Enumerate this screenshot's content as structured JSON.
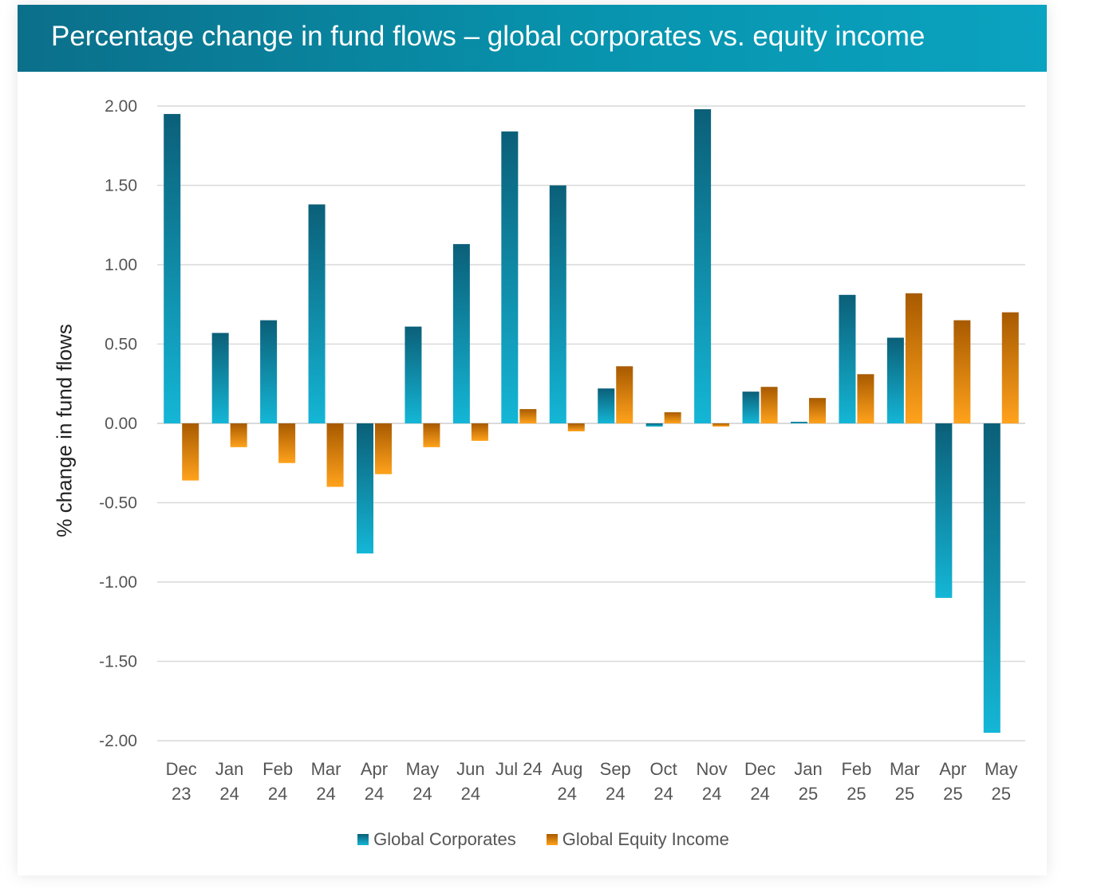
{
  "title": "Percentage change in fund flows – global corporates vs. equity income",
  "colors": {
    "header_left": "#0b6f8a",
    "header_right": "#0aa3c0",
    "series_1_top": "#0b5f78",
    "series_1_bottom": "#14b6d6",
    "series_2_top": "#a85a00",
    "series_2_bottom": "#ffa21c",
    "gridline": "#d9d9d9"
  },
  "chart_data": {
    "type": "bar",
    "ylabel": "% change in fund flows",
    "xlabel": "",
    "ylim": [
      -2.0,
      2.0
    ],
    "yticks": [
      "2.00",
      "1.50",
      "1.00",
      "0.50",
      "0.00",
      "-0.50",
      "-1.00",
      "-1.50",
      "-2.00"
    ],
    "ytick_values": [
      2.0,
      1.5,
      1.0,
      0.5,
      0.0,
      -0.5,
      -1.0,
      -1.5,
      -2.0
    ],
    "grid": true,
    "legend_position": "bottom",
    "categories": [
      [
        "Dec",
        "23"
      ],
      [
        "Jan",
        "24"
      ],
      [
        "Feb",
        "24"
      ],
      [
        "Mar",
        "24"
      ],
      [
        "Apr",
        "24"
      ],
      [
        "May",
        "24"
      ],
      [
        "Jun",
        "24"
      ],
      [
        "Jul 24"
      ],
      [
        "Aug",
        "24"
      ],
      [
        "Sep",
        "24"
      ],
      [
        "Oct",
        "24"
      ],
      [
        "Nov",
        "24"
      ],
      [
        "Dec",
        "24"
      ],
      [
        "Jan",
        "25"
      ],
      [
        "Feb",
        "25"
      ],
      [
        "Mar",
        "25"
      ],
      [
        "Apr",
        "25"
      ],
      [
        "May",
        "25"
      ]
    ],
    "series": [
      {
        "name": "Global Corporates",
        "values": [
          1.95,
          0.57,
          0.65,
          1.38,
          -0.82,
          0.61,
          1.13,
          1.84,
          1.5,
          0.22,
          -0.02,
          1.98,
          0.2,
          0.01,
          0.81,
          0.54,
          -1.1,
          -1.95
        ]
      },
      {
        "name": "Global Equity Income",
        "values": [
          -0.36,
          -0.15,
          -0.25,
          -0.4,
          -0.32,
          -0.15,
          -0.11,
          0.09,
          -0.05,
          0.36,
          0.07,
          -0.02,
          0.23,
          0.16,
          0.31,
          0.82,
          0.65,
          0.7
        ]
      }
    ]
  }
}
